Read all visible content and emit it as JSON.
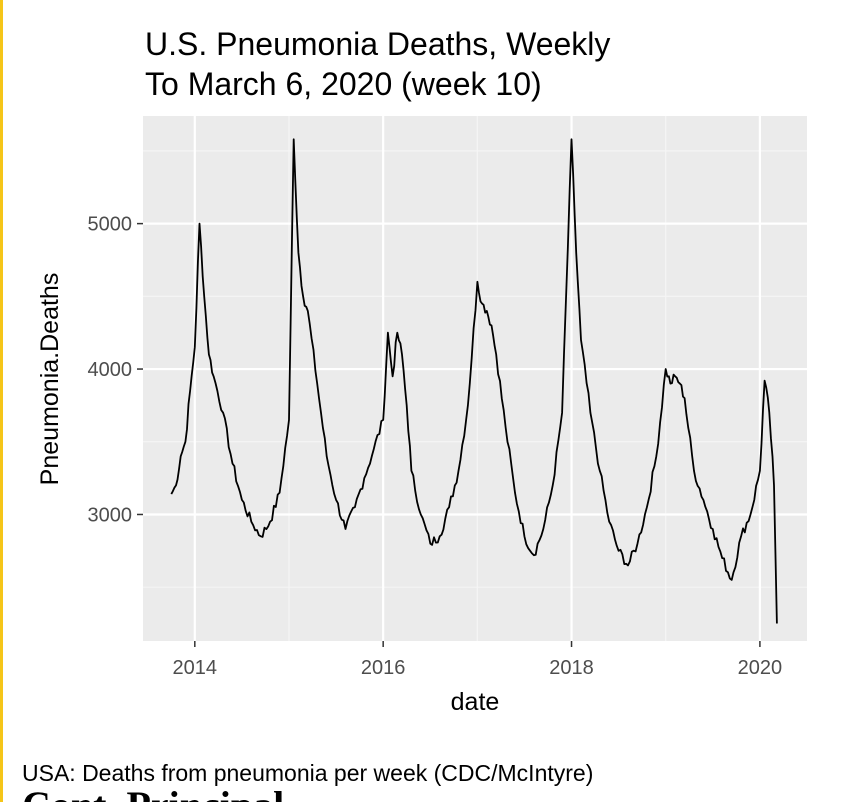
{
  "chart_data": {
    "type": "line",
    "title": "U.S. Pneumonia Deaths, Weekly",
    "subtitle": "To March 6, 2020 (week 10)",
    "xlabel": "date",
    "ylabel": "Pneumonia.Deaths",
    "x_ticks": [
      "2014",
      "2016",
      "2018",
      "2020"
    ],
    "x_tick_values": [
      2014,
      2016,
      2018,
      2020
    ],
    "y_ticks": [
      "3000",
      "4000",
      "5000"
    ],
    "y_tick_values": [
      3000,
      4000,
      5000
    ],
    "xlim": [
      2013.45,
      2020.5
    ],
    "ylim": [
      2130,
      5740
    ],
    "grid": true,
    "series": [
      {
        "name": "Pneumonia.Deaths",
        "x": [
          2013.75,
          2013.8,
          2013.85,
          2013.9,
          2013.95,
          2014.0,
          2014.05,
          2014.1,
          2014.15,
          2014.2,
          2014.3,
          2014.4,
          2014.5,
          2014.6,
          2014.7,
          2014.8,
          2014.9,
          2015.0,
          2015.05,
          2015.1,
          2015.15,
          2015.2,
          2015.3,
          2015.4,
          2015.5,
          2015.6,
          2015.7,
          2015.8,
          2015.9,
          2016.0,
          2016.05,
          2016.1,
          2016.15,
          2016.2,
          2016.25,
          2016.3,
          2016.4,
          2016.5,
          2016.6,
          2016.7,
          2016.8,
          2016.9,
          2017.0,
          2017.05,
          2017.1,
          2017.15,
          2017.2,
          2017.3,
          2017.4,
          2017.5,
          2017.6,
          2017.7,
          2017.8,
          2017.9,
          2018.0,
          2018.05,
          2018.1,
          2018.2,
          2018.3,
          2018.4,
          2018.5,
          2018.6,
          2018.7,
          2018.8,
          2018.9,
          2019.0,
          2019.05,
          2019.1,
          2019.15,
          2019.2,
          2019.3,
          2019.4,
          2019.5,
          2019.6,
          2019.7,
          2019.8,
          2019.9,
          2020.0,
          2020.05,
          2020.1,
          2020.15,
          2020.18
        ],
        "values": [
          3140,
          3200,
          3400,
          3500,
          3850,
          4150,
          5000,
          4500,
          4100,
          3950,
          3700,
          3350,
          3100,
          2950,
          2850,
          2950,
          3150,
          3650,
          5580,
          4800,
          4500,
          4400,
          3900,
          3400,
          3100,
          2900,
          3050,
          3250,
          3450,
          3650,
          4250,
          3950,
          4250,
          4100,
          3750,
          3300,
          3000,
          2800,
          2850,
          3050,
          3300,
          3750,
          4600,
          4450,
          4400,
          4300,
          4100,
          3600,
          3150,
          2850,
          2720,
          2900,
          3200,
          3700,
          5580,
          4800,
          4200,
          3700,
          3300,
          2950,
          2750,
          2650,
          2800,
          3050,
          3400,
          4000,
          3900,
          3950,
          3900,
          3800,
          3300,
          3100,
          2900,
          2700,
          2550,
          2850,
          3000,
          3300,
          3920,
          3700,
          3200,
          2250
        ]
      }
    ]
  },
  "caption": "USA: Deaths from pneumonia per week (CDC/McIntyre)",
  "clipped_text": "Cont. Principal",
  "colors": {
    "panel": "#ebebeb",
    "grid": "#ffffff",
    "line": "#000000",
    "tick_text": "#4d4d4d",
    "accent_rule": "#f5c518"
  }
}
